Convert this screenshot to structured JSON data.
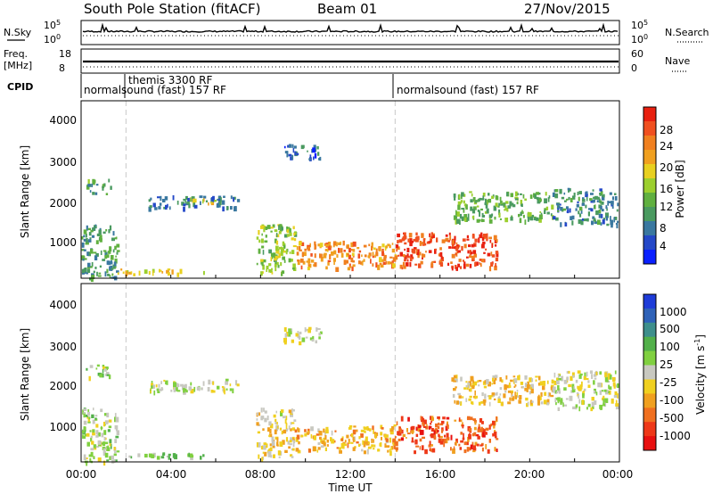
{
  "header": {
    "station": "South Pole Station (fitACF)",
    "beam": "Beam 01",
    "date": "27/Nov/2015"
  },
  "top_panels": {
    "nsky": {
      "left_label": "N.Sky",
      "left_ticks": [
        "10^5",
        "10^0"
      ],
      "right_label": "N.Search",
      "right_ticks": [
        "10^5",
        "10^0"
      ]
    },
    "freq": {
      "left_label_1": "Freq.",
      "left_label_2": "[MHz]",
      "left_ticks": [
        "18",
        "8"
      ],
      "right_label": "Nave",
      "right_ticks": [
        "60",
        "0"
      ]
    },
    "cpid": {
      "label": "CPID",
      "segments": [
        {
          "text": "normalsound (fast) 157 RF"
        },
        {
          "text": "themis 3300 RF"
        },
        {
          "text": "normalsound (fast) 157 RF"
        }
      ]
    }
  },
  "chart_data": [
    {
      "type": "heatmap",
      "title": "",
      "quantity": "Power",
      "xlabel": "",
      "ylabel": "Slant Range [km]",
      "x_range_hours": [
        0,
        24
      ],
      "ylim": [
        180,
        4500
      ],
      "y_ticks": [
        "4000",
        "3000",
        "2000",
        "1000"
      ],
      "colorbar": {
        "label": "Power [dB]",
        "range": [
          0,
          30
        ],
        "ticks": [
          "28",
          "24",
          "20",
          "16",
          "12",
          "8",
          "4"
        ],
        "colors": [
          "#0a20ff",
          "#2448c8",
          "#3a78a0",
          "#4a9a60",
          "#60b040",
          "#9ccf2e",
          "#e8d020",
          "#f0a020",
          "#f08020",
          "#f05020",
          "#e82010"
        ]
      },
      "echo_regions": [
        {
          "t0": 0.0,
          "t1": 1.6,
          "r0": 180,
          "r1": 1500,
          "power_db": 10
        },
        {
          "t0": 0.2,
          "t1": 1.3,
          "r0": 2250,
          "r1": 2600,
          "power_db": 10
        },
        {
          "t0": 1.5,
          "t1": 5.5,
          "r0": 300,
          "r1": 420,
          "power_db": 18
        },
        {
          "t0": 3.0,
          "t1": 7.0,
          "r0": 1900,
          "r1": 2200,
          "power_db": 7
        },
        {
          "t0": 4.8,
          "t1": 6.0,
          "r0": 2000,
          "r1": 2150,
          "power_db": 18
        },
        {
          "t0": 7.8,
          "t1": 9.5,
          "r0": 300,
          "r1": 1500,
          "power_db": 14
        },
        {
          "t0": 9.0,
          "t1": 10.7,
          "r0": 3100,
          "r1": 3450,
          "power_db": 6
        },
        {
          "t0": 9.5,
          "t1": 14.0,
          "r0": 450,
          "r1": 1100,
          "power_db": 22
        },
        {
          "t0": 14.0,
          "t1": 18.5,
          "r0": 450,
          "r1": 1300,
          "power_db": 26
        },
        {
          "t0": 16.5,
          "t1": 21.0,
          "r0": 1600,
          "r1": 2300,
          "power_db": 12
        },
        {
          "t0": 21.0,
          "t1": 23.9,
          "r0": 1500,
          "r1": 2400,
          "power_db": 8
        }
      ]
    },
    {
      "type": "heatmap",
      "title": "",
      "quantity": "Velocity",
      "xlabel": "Time UT",
      "ylabel": "Slant Range [km]",
      "x_range_hours": [
        0,
        24
      ],
      "x_ticks": [
        "00:00",
        "04:00",
        "08:00",
        "12:00",
        "16:00",
        "20:00",
        "00:00"
      ],
      "ylim": [
        180,
        4500
      ],
      "y_ticks": [
        "4000",
        "3000",
        "2000",
        "1000"
      ],
      "colorbar": {
        "label": "Velocity [m s^-1]",
        "ticks": [
          "1000",
          "500",
          "100",
          "25",
          "-25",
          "-100",
          "-500",
          "-1000"
        ],
        "colors": [
          "#1e3cd8",
          "#2f62b8",
          "#3e8f8c",
          "#52b04a",
          "#80d040",
          "#c8c8c0",
          "#f0d020",
          "#f0a020",
          "#f07020",
          "#ee3818",
          "#e81010"
        ]
      },
      "echo_regions": [
        {
          "t0": 0.0,
          "t1": 1.6,
          "r0": 180,
          "r1": 1500,
          "velocity": 100
        },
        {
          "t0": 0.2,
          "t1": 1.3,
          "r0": 2250,
          "r1": 2600,
          "velocity": 100
        },
        {
          "t0": 1.5,
          "t1": 5.5,
          "r0": 300,
          "r1": 420,
          "velocity": 200
        },
        {
          "t0": 3.0,
          "t1": 7.0,
          "r0": 1900,
          "r1": 2200,
          "velocity": 0
        },
        {
          "t0": 7.8,
          "t1": 9.5,
          "r0": 300,
          "r1": 1500,
          "velocity": -150
        },
        {
          "t0": 9.0,
          "t1": 10.7,
          "r0": 3100,
          "r1": 3450,
          "velocity": 0
        },
        {
          "t0": 9.5,
          "t1": 14.0,
          "r0": 450,
          "r1": 1100,
          "velocity": -300
        },
        {
          "t0": 14.0,
          "t1": 18.5,
          "r0": 450,
          "r1": 1300,
          "velocity": -600
        },
        {
          "t0": 16.5,
          "t1": 21.0,
          "r0": 1600,
          "r1": 2300,
          "velocity": -200
        },
        {
          "t0": 21.0,
          "t1": 23.9,
          "r0": 1500,
          "r1": 2400,
          "velocity": 0
        }
      ]
    }
  ]
}
